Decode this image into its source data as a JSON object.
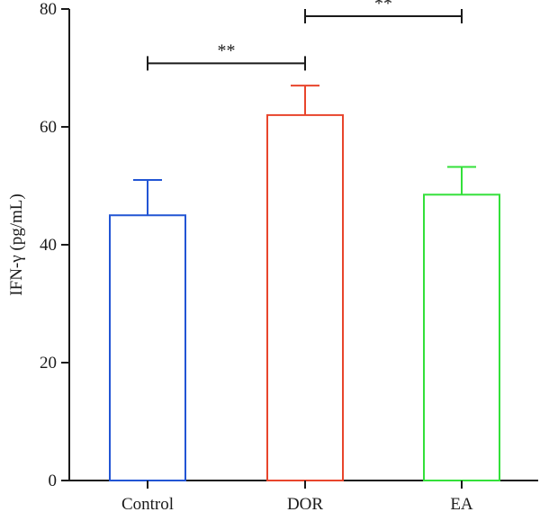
{
  "chart_data": {
    "type": "bar",
    "categories": [
      "Control",
      "DOR",
      "EA"
    ],
    "values": [
      45,
      62,
      48.5
    ],
    "error_upper": [
      51,
      67,
      53.2
    ],
    "colors": [
      "#2255d4",
      "#e8452c",
      "#33e03a"
    ],
    "xlabel": "",
    "ylabel": "IFN-γ (pg/mL)",
    "ylim": [
      0,
      80
    ],
    "yticks": [
      0,
      20,
      40,
      60,
      80
    ],
    "significance": [
      {
        "from": "Control",
        "to": "DOR",
        "label": "**",
        "level": 72
      },
      {
        "from": "DOR",
        "to": "EA",
        "label": "**",
        "level": 80
      }
    ],
    "grid": false,
    "legend": "none"
  }
}
